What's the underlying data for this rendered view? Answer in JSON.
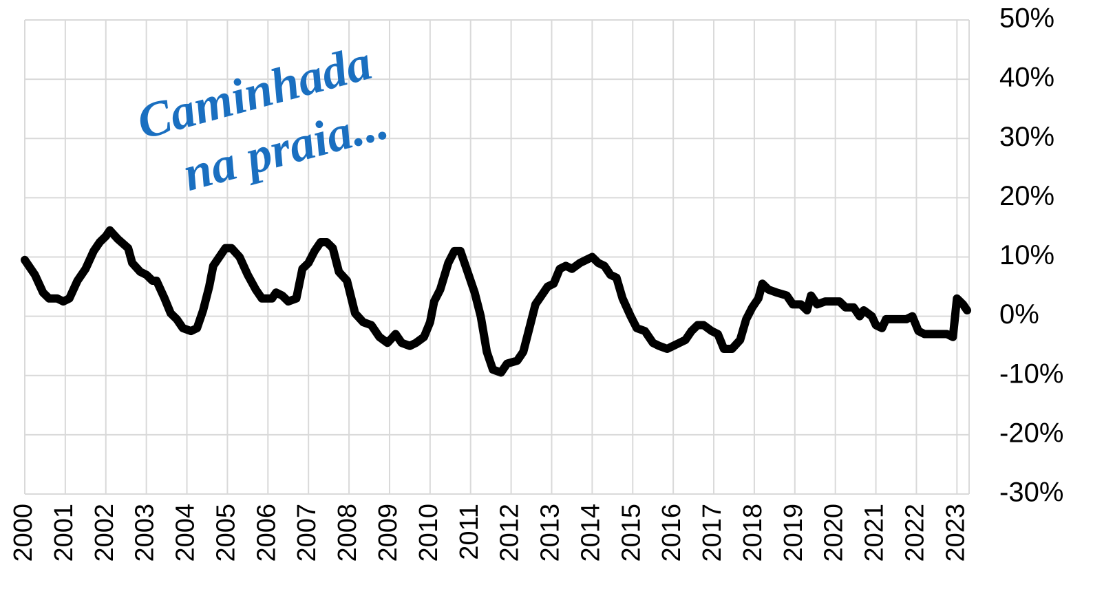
{
  "chart_data": {
    "type": "line",
    "annotation": [
      "Caminhada",
      "na praia..."
    ],
    "annotation_color": "#1a6fc0",
    "x": [
      2000.0,
      2000.25,
      2000.45,
      2000.6,
      2000.8,
      2000.95,
      2001.1,
      2001.3,
      2001.5,
      2001.7,
      2001.85,
      2002.0,
      2002.1,
      2002.3,
      2002.55,
      2002.65,
      2002.85,
      2003.0,
      2003.15,
      2003.25,
      2003.45,
      2003.6,
      2003.75,
      2003.9,
      2004.1,
      2004.25,
      2004.4,
      2004.55,
      2004.65,
      2004.8,
      2004.95,
      2005.1,
      2005.3,
      2005.5,
      2005.7,
      2005.85,
      2006.1,
      2006.2,
      2006.35,
      2006.5,
      2006.7,
      2006.85,
      2007.0,
      2007.15,
      2007.3,
      2007.45,
      2007.6,
      2007.75,
      2007.95,
      2008.15,
      2008.35,
      2008.55,
      2008.75,
      2008.95,
      2009.15,
      2009.3,
      2009.5,
      2009.65,
      2009.85,
      2010.0,
      2010.1,
      2010.25,
      2010.45,
      2010.6,
      2010.75,
      2010.9,
      2011.1,
      2011.25,
      2011.4,
      2011.55,
      2011.75,
      2011.9,
      2012.15,
      2012.3,
      2012.45,
      2012.6,
      2012.75,
      2012.9,
      2013.05,
      2013.2,
      2013.35,
      2013.5,
      2013.7,
      2013.85,
      2014.0,
      2014.15,
      2014.3,
      2014.45,
      2014.6,
      2014.75,
      2014.95,
      2015.1,
      2015.3,
      2015.5,
      2015.65,
      2015.85,
      2016.0,
      2016.15,
      2016.3,
      2016.45,
      2016.6,
      2016.75,
      2016.95,
      2017.1,
      2017.25,
      2017.45,
      2017.65,
      2017.8,
      2017.95,
      2018.1,
      2018.2,
      2018.35,
      2018.55,
      2018.8,
      2018.95,
      2019.15,
      2019.3,
      2019.4,
      2019.55,
      2019.75,
      2019.95,
      2020.1,
      2020.25,
      2020.45,
      2020.6,
      2020.7,
      2020.9,
      2021.0,
      2021.15,
      2021.25,
      2021.45,
      2021.6,
      2021.75,
      2021.9,
      2022.05,
      2022.2,
      2022.4,
      2022.6,
      2022.75,
      2022.9,
      2023.0,
      2023.15,
      2023.25
    ],
    "series": [
      {
        "color": "#000000",
        "values": [
          9.5,
          7,
          4,
          3,
          3,
          2.5,
          3,
          6,
          8,
          11,
          12.5,
          13.5,
          14.5,
          13,
          11.5,
          9,
          7.5,
          7,
          6,
          6,
          3,
          0.5,
          -0.5,
          -2,
          -2.5,
          -2,
          1,
          5,
          8.5,
          10,
          11.5,
          11.5,
          10,
          7,
          4.5,
          3,
          3,
          4,
          3.5,
          2.5,
          3,
          8,
          9,
          11,
          12.5,
          12.5,
          11.5,
          7.5,
          6,
          0.5,
          -1,
          -1.5,
          -3.5,
          -4.5,
          -3,
          -4.5,
          -5,
          -4.5,
          -3.5,
          -1,
          2.5,
          4.5,
          9,
          11,
          11,
          8,
          4,
          0,
          -6,
          -9,
          -9.5,
          -8,
          -7.5,
          -6,
          -2,
          2,
          3.5,
          5,
          5.5,
          8,
          8.5,
          8,
          9,
          9.5,
          10,
          9,
          8.5,
          7,
          6.5,
          3,
          0,
          -2,
          -2.5,
          -4.5,
          -5,
          -5.5,
          -5,
          -4.5,
          -4,
          -2.5,
          -1.5,
          -1.5,
          -2.5,
          -3,
          -5.5,
          -5.5,
          -4,
          -0.5,
          1.5,
          3,
          5.5,
          4.5,
          4,
          3.5,
          2,
          2,
          1,
          3.5,
          2,
          2.5,
          2.5,
          2.5,
          1.5,
          1.5,
          0,
          1,
          0,
          -1.5,
          -2,
          -0.5,
          -0.5,
          -0.5,
          -0.5,
          0,
          -2.5,
          -3,
          -3,
          -3,
          -3,
          -3.5,
          3,
          2,
          1
        ]
      }
    ],
    "xlim": [
      2000,
      2023.3
    ],
    "xticks": [
      2000,
      2001,
      2002,
      2003,
      2004,
      2005,
      2006,
      2007,
      2008,
      2009,
      2010,
      2011,
      2012,
      2013,
      2014,
      2015,
      2016,
      2017,
      2018,
      2019,
      2020,
      2021,
      2022,
      2023
    ],
    "ylim": [
      -30,
      50
    ],
    "yticks": [
      {
        "value": -30,
        "label": "-30%"
      },
      {
        "value": -20,
        "label": "-20%"
      },
      {
        "value": -10,
        "label": "-10%"
      },
      {
        "value": 0,
        "label": "0%"
      },
      {
        "value": 10,
        "label": "10%"
      },
      {
        "value": 20,
        "label": "20%"
      },
      {
        "value": 30,
        "label": "30%"
      },
      {
        "value": 40,
        "label": "40%"
      },
      {
        "value": 50,
        "label": "50%"
      }
    ],
    "grid": true
  }
}
